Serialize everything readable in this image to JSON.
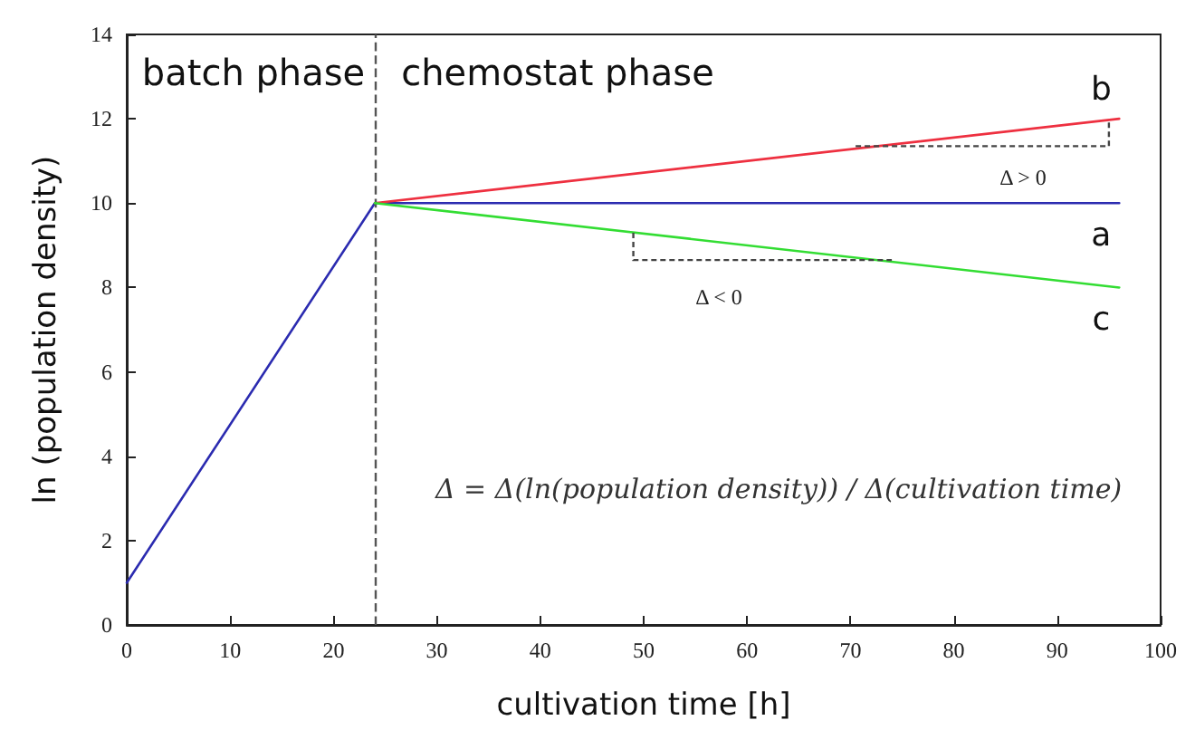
{
  "chart_data": {
    "type": "line",
    "xlabel": "cultivation time [h]",
    "ylabel": "ln (population density)",
    "xlim": [
      0,
      100
    ],
    "xticks": [
      0,
      10,
      20,
      30,
      40,
      50,
      60,
      70,
      80,
      90,
      100
    ],
    "ylim": [
      0,
      14
    ],
    "yticks": [
      0,
      2,
      4,
      6,
      8,
      10,
      12,
      14
    ],
    "grid": false,
    "legend": false,
    "marker": "none",
    "line_style": "solid",
    "series": [
      {
        "name": "a",
        "color": "#2b2bb0",
        "x": [
          0,
          24,
          96
        ],
        "values": [
          1,
          10,
          10
        ]
      },
      {
        "name": "b",
        "color": "#ee3040",
        "x": [
          24,
          96
        ],
        "values": [
          10,
          12
        ]
      },
      {
        "name": "c",
        "color": "#33dd33",
        "x": [
          24,
          96
        ],
        "values": [
          10,
          8
        ]
      }
    ],
    "ref_lines": [
      {
        "axis": "x",
        "value": 24,
        "label": null,
        "color": "#555555",
        "line_style": "dashed"
      }
    ],
    "annotations": [
      "batch phase",
      "chemostat phase",
      "Δ > 0",
      "Δ < 0",
      "Δ = Δ(ln(population density)) / Δ(cultivation time)"
    ]
  }
}
